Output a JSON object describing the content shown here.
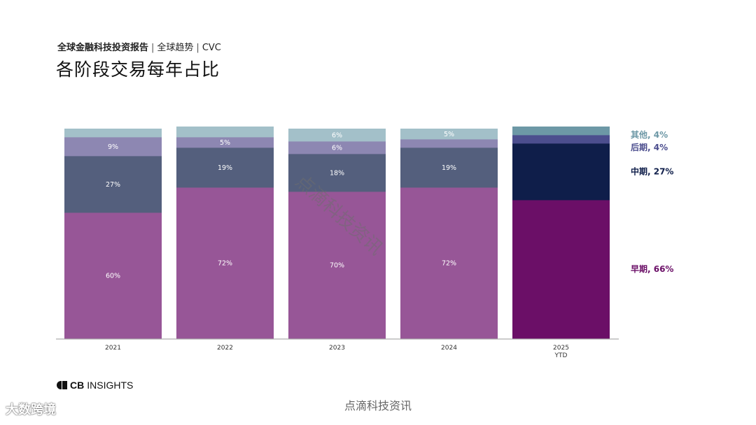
{
  "header": {
    "report_name": "全球金融科技投资报告",
    "separator": "|",
    "section": "全球趋势",
    "topic": "CVC",
    "title": "各阶段交易每年占比"
  },
  "chart_data": {
    "type": "bar",
    "stacked": true,
    "normalized": true,
    "title": "各阶段交易每年占比",
    "categories": [
      [
        "2021"
      ],
      [
        "2022"
      ],
      [
        "2023"
      ],
      [
        "2024"
      ],
      [
        "2025",
        "YTD"
      ]
    ],
    "ylim": [
      0,
      100
    ],
    "series": [
      {
        "name": "早期",
        "values": [
          60,
          72,
          70,
          72,
          66
        ],
        "labels": [
          "60%",
          "72%",
          "70%",
          "72%",
          ""
        ],
        "highlight_color": "#6b0f67",
        "color": "#975697",
        "label_color": "#6b0f67"
      },
      {
        "name": "中期",
        "values": [
          27,
          19,
          18,
          19,
          27
        ],
        "labels": [
          "27%",
          "19%",
          "18%",
          "19%",
          ""
        ],
        "highlight_color": "#0f1e4a",
        "color": "#545f7d",
        "label_color": "#0f1e4a"
      },
      {
        "name": "后期",
        "values": [
          9,
          5,
          6,
          4,
          4
        ],
        "labels": [
          "9%",
          "5%",
          "6%",
          "",
          ""
        ],
        "highlight_color": "#4c4e8e",
        "color": "#8d87b2",
        "label_color": "#4c4e8e"
      },
      {
        "name": "其他",
        "values": [
          4,
          5,
          6,
          5,
          4
        ],
        "labels": [
          "",
          "",
          "6%",
          "5%",
          ""
        ],
        "highlight_color": "#6d98a6",
        "color": "#a3c0c9",
        "label_color": "#6d98a6"
      }
    ],
    "legend": {
      "placement": "right",
      "items": [
        {
          "text": "其他, 4%",
          "series": "其他"
        },
        {
          "text": "后期, 4%",
          "series": "后期"
        },
        {
          "text": "中期, 27%",
          "series": "中期"
        },
        {
          "text": "早期, 66%",
          "series": "早期"
        }
      ]
    },
    "highlight_category_index": 4,
    "label_text_color": "#ffffff",
    "axis_color": "#999999"
  },
  "brand": {
    "logo_icon": "cb-insights-logo-icon",
    "name_bold": "CB",
    "name_rest": "INSIGHTS"
  },
  "footer": {
    "source": "点滴科技资讯"
  },
  "watermark": {
    "text": "点滴科技资讯"
  },
  "stamp": {
    "text": "大数跨境"
  }
}
